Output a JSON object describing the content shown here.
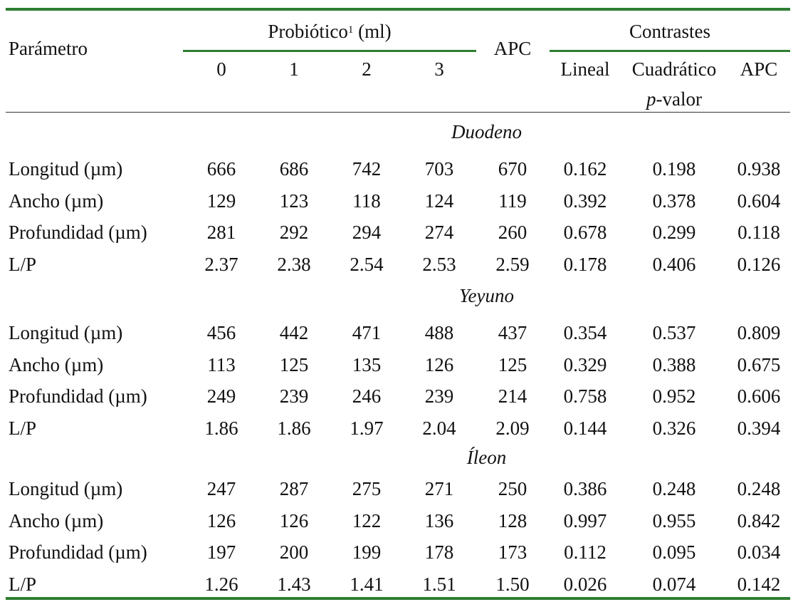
{
  "header": {
    "parametro": "Parámetro",
    "probiotico": "Probiótico",
    "probiotico_sup": "1",
    "probiotico_unit": " (ml)",
    "doses": [
      "0",
      "1",
      "2",
      "3"
    ],
    "apc": "APC",
    "contrastes": "Contrastes",
    "lineal": "Lineal",
    "cuadratico": "Cuadrático",
    "apc_contrast": "APC",
    "pvalor_italic": "p",
    "pvalor_rest": "-valor"
  },
  "sections": [
    {
      "name": "Duodeno",
      "rows": [
        {
          "label": "Longitud (µm)",
          "values": [
            "666",
            "686",
            "742",
            "703",
            "670",
            "0.162",
            "0.198",
            "0.938"
          ]
        },
        {
          "label": "Ancho (µm)",
          "values": [
            "129",
            "123",
            "118",
            "124",
            "119",
            "0.392",
            "0.378",
            "0.604"
          ]
        },
        {
          "label": "Profundidad (µm)",
          "values": [
            "281",
            "292",
            "294",
            "274",
            "260",
            "0.678",
            "0.299",
            "0.118"
          ]
        },
        {
          "label": "L/P",
          "values": [
            "2.37",
            "2.38",
            "2.54",
            "2.53",
            "2.59",
            "0.178",
            "0.406",
            "0.126"
          ]
        }
      ]
    },
    {
      "name": "Yeyuno",
      "rows": [
        {
          "label": "Longitud (µm)",
          "values": [
            "456",
            "442",
            "471",
            "488",
            "437",
            "0.354",
            "0.537",
            "0.809"
          ]
        },
        {
          "label": "Ancho (µm)",
          "values": [
            "113",
            "125",
            "135",
            "126",
            "125",
            "0.329",
            "0.388",
            "0.675"
          ]
        },
        {
          "label": "Profundidad (µm)",
          "values": [
            "249",
            "239",
            "246",
            "239",
            "214",
            "0.758",
            "0.952",
            "0.606"
          ]
        },
        {
          "label": "L/P",
          "values": [
            "1.86",
            "1.86",
            "1.97",
            "2.04",
            "2.09",
            "0.144",
            "0.326",
            "0.394"
          ]
        }
      ]
    },
    {
      "name": "Íleon",
      "rows": [
        {
          "label": "Longitud (µm)",
          "values": [
            "247",
            "287",
            "275",
            "271",
            "250",
            "0.386",
            "0.248",
            "0.248"
          ]
        },
        {
          "label": "Ancho (µm)",
          "values": [
            "126",
            "126",
            "122",
            "136",
            "128",
            "0.997",
            "0.955",
            "0.842"
          ]
        },
        {
          "label": "Profundidad (µm)",
          "values": [
            "197",
            "200",
            "199",
            "178",
            "173",
            "0.112",
            "0.095",
            "0.034"
          ]
        },
        {
          "label": "L/P",
          "values": [
            "1.26",
            "1.43",
            "1.41",
            "1.51",
            "1.50",
            "0.026",
            "0.074",
            "0.142"
          ]
        }
      ]
    }
  ]
}
